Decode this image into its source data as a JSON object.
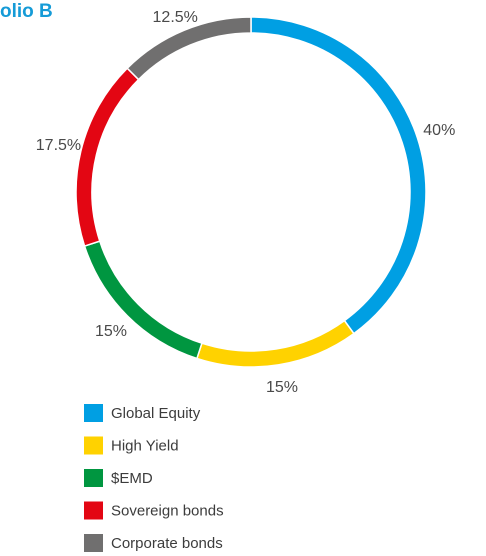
{
  "chart_data": {
    "type": "donut",
    "title": "olio B",
    "categories": [
      "Global Equity",
      "High Yield",
      "$EMD",
      "Sovereign bonds",
      "Corporate bonds"
    ],
    "values": [
      40,
      15,
      15,
      17.5,
      12.5
    ],
    "value_labels": [
      "40%",
      "15%",
      "15%",
      "17.5%",
      "12.5%"
    ],
    "colors": [
      "#009fe3",
      "#ffd200",
      "#009640",
      "#e30613",
      "#706f6f"
    ]
  }
}
